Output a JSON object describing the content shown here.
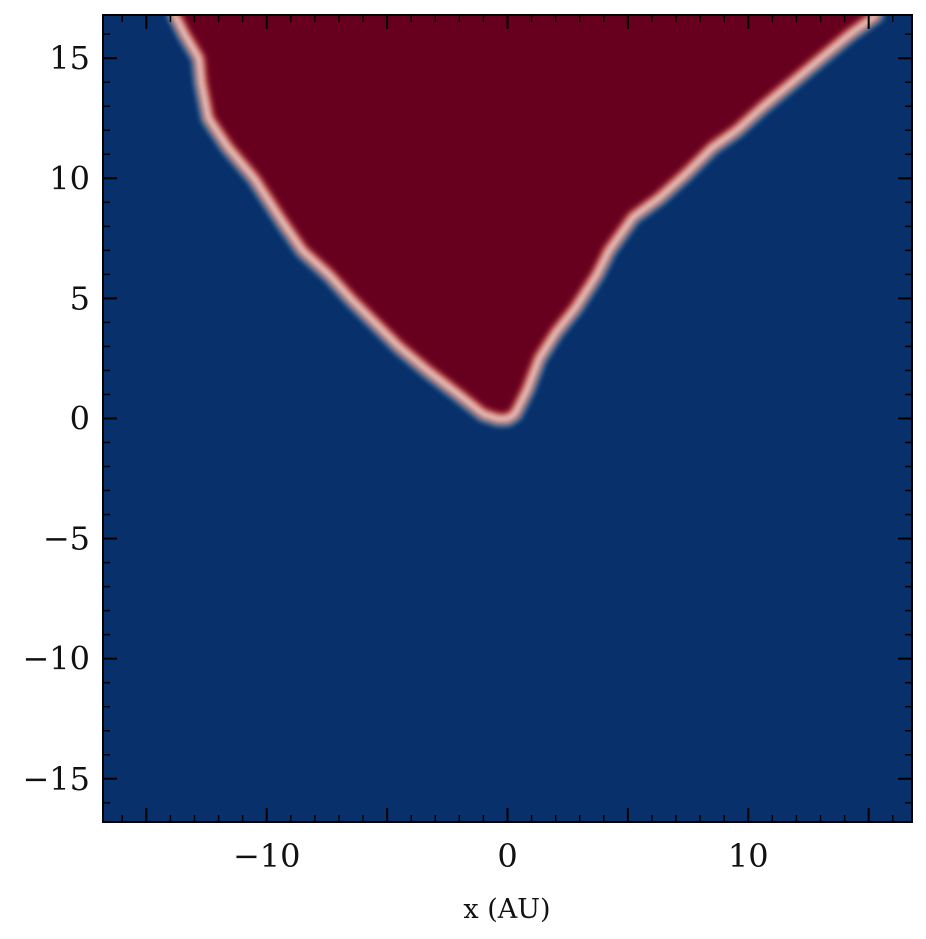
{
  "chart_data": {
    "type": "heatmap",
    "title": "",
    "xlabel": "x (AU)",
    "ylabel": "",
    "xlim": [
      -16.8,
      16.8
    ],
    "ylim": [
      -16.8,
      16.8
    ],
    "grid": false,
    "colorbar": false,
    "colormap": "RdBu_r",
    "colors": {
      "low": "#08306b",
      "high": "#67001f",
      "edge_light": "#f7f7f7",
      "edge_warm": "#d6604d",
      "edge_cool": "#4393c3"
    },
    "x_ticks": [
      {
        "value": -10,
        "label": "−10"
      },
      {
        "value": 0,
        "label": "0"
      },
      {
        "value": 10,
        "label": "10"
      }
    ],
    "y_ticks": [
      {
        "value": 15,
        "label": "15"
      },
      {
        "value": 10,
        "label": "10"
      },
      {
        "value": 5,
        "label": "5"
      },
      {
        "value": 0,
        "label": "0"
      },
      {
        "value": -5,
        "label": "−5"
      },
      {
        "value": -10,
        "label": "−10"
      },
      {
        "value": -15,
        "label": "−15"
      }
    ],
    "high_region_boundary": [
      [
        -13.8,
        16.8
      ],
      [
        -13.4,
        16.0
      ],
      [
        -12.8,
        15.0
      ],
      [
        -12.7,
        14.0
      ],
      [
        -12.4,
        12.5
      ],
      [
        -11.6,
        11.3
      ],
      [
        -10.5,
        10.0
      ],
      [
        -9.4,
        8.3
      ],
      [
        -8.5,
        7.0
      ],
      [
        -7.4,
        6.0
      ],
      [
        -6.5,
        5.0
      ],
      [
        -5.5,
        4.0
      ],
      [
        -4.5,
        3.0
      ],
      [
        -3.3,
        2.0
      ],
      [
        -2.0,
        1.0
      ],
      [
        -1.0,
        0.2
      ],
      [
        -0.4,
        0.0
      ],
      [
        0.0,
        0.0
      ],
      [
        0.3,
        0.2
      ],
      [
        0.8,
        1.2
      ],
      [
        1.3,
        2.5
      ],
      [
        2.0,
        3.6
      ],
      [
        2.8,
        4.6
      ],
      [
        3.7,
        6.0
      ],
      [
        4.2,
        7.0
      ],
      [
        5.2,
        8.4
      ],
      [
        6.3,
        9.2
      ],
      [
        7.4,
        10.2
      ],
      [
        8.5,
        11.3
      ],
      [
        9.5,
        12.0
      ],
      [
        10.6,
        13.0
      ],
      [
        11.8,
        14.0
      ],
      [
        13.0,
        15.0
      ],
      [
        14.2,
        16.0
      ],
      [
        15.3,
        16.8
      ]
    ]
  }
}
